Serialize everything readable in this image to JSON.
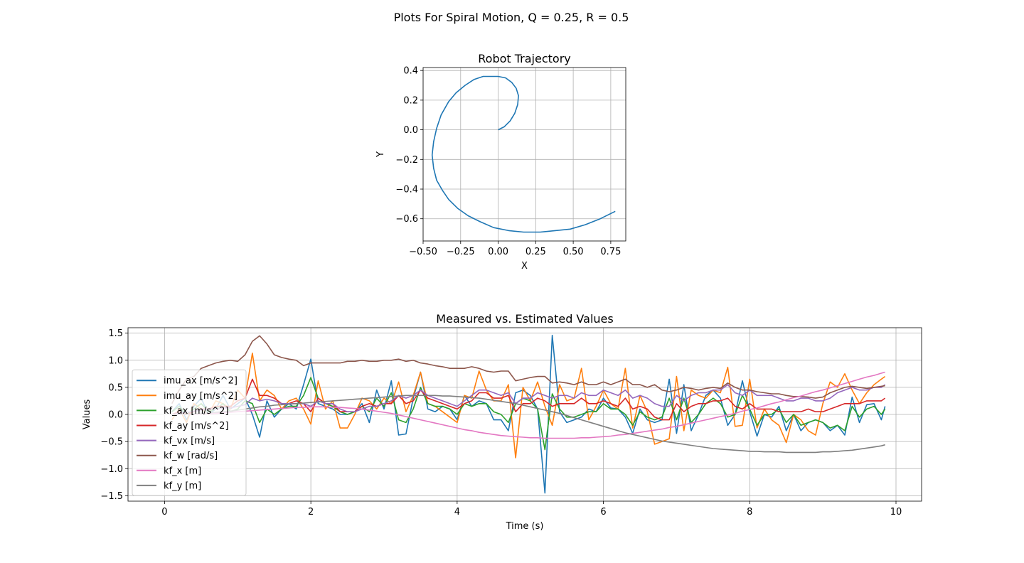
{
  "figure": {
    "suptitle": "Plots For Spiral Motion, Q = 0.25, R = 0.5"
  },
  "chart_data": [
    {
      "type": "line",
      "title": "Robot Trajectory",
      "xlabel": "X",
      "ylabel": "Y",
      "xlim": [
        -0.5,
        0.85
      ],
      "ylim": [
        -0.75,
        0.42
      ],
      "xticks": [
        -0.5,
        -0.25,
        0.0,
        0.25,
        0.5,
        0.75
      ],
      "xtick_labels": [
        "−0.50",
        "−0.25",
        "0.00",
        "0.25",
        "0.50",
        "0.75"
      ],
      "yticks": [
        -0.6,
        -0.4,
        -0.2,
        0.0,
        0.2,
        0.4
      ],
      "ytick_labels": [
        "−0.6",
        "−0.4",
        "−0.2",
        "0.0",
        "0.2",
        "0.4"
      ],
      "grid": true,
      "series": [
        {
          "color": "#1f77b4",
          "x": [
            0.0,
            0.04,
            0.08,
            0.11,
            0.13,
            0.135,
            0.12,
            0.09,
            0.05,
            0.0,
            -0.05,
            -0.1,
            -0.16,
            -0.22,
            -0.28,
            -0.33,
            -0.38,
            -0.41,
            -0.43,
            -0.44,
            -0.43,
            -0.41,
            -0.37,
            -0.33,
            -0.27,
            -0.2,
            -0.12,
            -0.03,
            0.07,
            0.17,
            0.28,
            0.38,
            0.48,
            0.58,
            0.68,
            0.78
          ],
          "y": [
            0.0,
            0.02,
            0.06,
            0.11,
            0.17,
            0.23,
            0.28,
            0.32,
            0.35,
            0.36,
            0.36,
            0.36,
            0.34,
            0.3,
            0.25,
            0.19,
            0.1,
            0.01,
            -0.08,
            -0.17,
            -0.26,
            -0.34,
            -0.41,
            -0.47,
            -0.53,
            -0.58,
            -0.62,
            -0.66,
            -0.68,
            -0.69,
            -0.69,
            -0.68,
            -0.67,
            -0.64,
            -0.6,
            -0.55
          ]
        }
      ]
    },
    {
      "type": "line",
      "title": "Measured vs. Estimated Values",
      "xlabel": "Time (s)",
      "ylabel": "Values",
      "xlim": [
        -0.5,
        10.35
      ],
      "ylim": [
        -1.6,
        1.6
      ],
      "xticks": [
        0,
        2,
        4,
        6,
        8,
        10
      ],
      "xtick_labels": [
        "0",
        "2",
        "4",
        "6",
        "8",
        "10"
      ],
      "yticks": [
        -1.5,
        -1.0,
        -0.5,
        0.0,
        0.5,
        1.0,
        1.5
      ],
      "ytick_labels": [
        "−1.5",
        "−1.0",
        "−0.5",
        "0.0",
        "0.5",
        "1.0",
        "1.5"
      ],
      "grid": true,
      "legend_position": "lower-left",
      "x": [
        0.1,
        0.2,
        0.3,
        0.4,
        0.5,
        0.6,
        0.7,
        0.8,
        0.9,
        1.0,
        1.1,
        1.2,
        1.3,
        1.4,
        1.5,
        1.6,
        1.7,
        1.8,
        1.9,
        2.0,
        2.1,
        2.2,
        2.3,
        2.4,
        2.5,
        2.6,
        2.7,
        2.8,
        2.9,
        3.0,
        3.1,
        3.2,
        3.3,
        3.4,
        3.5,
        3.6,
        3.7,
        3.8,
        3.9,
        4.0,
        4.1,
        4.2,
        4.3,
        4.4,
        4.5,
        4.6,
        4.7,
        4.8,
        4.9,
        5.0,
        5.1,
        5.2,
        5.3,
        5.4,
        5.5,
        5.6,
        5.7,
        5.8,
        5.9,
        6.0,
        6.1,
        6.2,
        6.3,
        6.4,
        6.5,
        6.6,
        6.7,
        6.8,
        6.9,
        7.0,
        7.1,
        7.2,
        7.3,
        7.4,
        7.5,
        7.6,
        7.7,
        7.8,
        7.9,
        8.0,
        8.1,
        8.2,
        8.3,
        8.4,
        8.5,
        8.6,
        8.7,
        8.8,
        8.9,
        9.0,
        9.1,
        9.2,
        9.3,
        9.4,
        9.5,
        9.6,
        9.7,
        9.8,
        9.85
      ],
      "series": [
        {
          "name": "imu_ax [m/s^2]",
          "color": "#1f77b4",
          "values": [
            0.05,
            0.2,
            -0.1,
            0.15,
            0.3,
            0.0,
            0.1,
            0.35,
            0.1,
            0.2,
            0.3,
            0.0,
            -0.42,
            0.25,
            -0.05,
            0.1,
            0.2,
            0.1,
            0.55,
            1.02,
            0.2,
            0.15,
            0.1,
            0.0,
            0.0,
            0.05,
            0.2,
            -0.15,
            0.45,
            0.1,
            0.62,
            -0.38,
            -0.36,
            0.3,
            0.78,
            0.1,
            0.05,
            0.15,
            0.1,
            -0.1,
            0.35,
            0.15,
            0.25,
            0.2,
            -0.1,
            -0.1,
            -0.3,
            0.4,
            0.45,
            0.35,
            0.1,
            -1.45,
            1.46,
            0.05,
            -0.15,
            -0.1,
            -0.05,
            0.1,
            0.05,
            0.3,
            0.12,
            0.1,
            -0.05,
            -0.35,
            0.1,
            -0.1,
            -0.15,
            -0.1,
            0.65,
            -0.35,
            0.55,
            -0.3,
            0.0,
            0.35,
            0.45,
            0.3,
            -0.2,
            0.0,
            0.62,
            0.05,
            -0.4,
            0.0,
            -0.05,
            0.15,
            -0.3,
            0.0,
            -0.3,
            -0.15,
            -0.1,
            -0.15,
            -0.3,
            -0.2,
            -0.38,
            0.32,
            -0.15,
            0.18,
            0.2,
            -0.1,
            0.15
          ]
        },
        {
          "name": "imu_ay [m/s^2]",
          "color": "#ff7f0e",
          "values": [
            -0.1,
            0.1,
            -0.15,
            0.2,
            0.1,
            0.0,
            0.25,
            0.2,
            0.1,
            0.45,
            0.3,
            1.13,
            0.25,
            0.45,
            0.35,
            0.1,
            0.25,
            0.3,
            0.1,
            -0.18,
            0.62,
            0.1,
            0.25,
            -0.25,
            -0.25,
            0.0,
            0.3,
            0.25,
            0.1,
            0.3,
            0.2,
            0.6,
            0.05,
            0.35,
            0.78,
            0.2,
            0.15,
            0.05,
            -0.05,
            -0.15,
            0.35,
            0.3,
            0.8,
            0.45,
            0.25,
            0.25,
            0.55,
            -0.8,
            0.5,
            0.25,
            0.6,
            0.15,
            -0.2,
            0.55,
            0.25,
            0.3,
            0.85,
            -0.1,
            0.15,
            0.45,
            0.2,
            0.1,
            0.85,
            -0.25,
            0.35,
            0.05,
            -0.55,
            -0.5,
            -0.45,
            0.7,
            -0.3,
            0.45,
            0.35,
            0.3,
            0.45,
            0.4,
            0.87,
            -0.22,
            -0.2,
            0.65,
            -0.25,
            0.1,
            -0.1,
            -0.2,
            -0.52,
            0.0,
            -0.1,
            -0.3,
            -0.38,
            0.2,
            0.6,
            0.5,
            0.75,
            0.45,
            0.2,
            0.4,
            0.55,
            0.65,
            0.7
          ]
        },
        {
          "name": "kf_ax [m/s^2]",
          "color": "#2ca02c",
          "values": [
            0.05,
            0.15,
            0.0,
            0.1,
            0.2,
            0.05,
            0.1,
            0.2,
            0.05,
            0.1,
            0.25,
            0.2,
            -0.15,
            0.1,
            0.0,
            0.1,
            0.15,
            0.15,
            0.35,
            0.68,
            0.3,
            0.2,
            0.15,
            0.05,
            0.0,
            0.05,
            0.15,
            0.05,
            0.3,
            0.15,
            0.4,
            -0.1,
            -0.15,
            0.1,
            0.5,
            0.2,
            0.15,
            0.15,
            0.1,
            0.0,
            0.2,
            0.15,
            0.2,
            0.2,
            0.05,
            0.0,
            -0.15,
            0.2,
            0.3,
            0.25,
            0.1,
            -0.65,
            0.38,
            0.1,
            -0.05,
            -0.05,
            0.0,
            0.05,
            0.05,
            0.2,
            0.1,
            0.1,
            0.0,
            -0.2,
            0.05,
            -0.05,
            -0.1,
            -0.05,
            0.3,
            -0.1,
            0.3,
            -0.15,
            0.0,
            0.2,
            0.3,
            0.2,
            -0.05,
            0.0,
            0.35,
            0.1,
            -0.2,
            0.0,
            0.0,
            0.1,
            -0.15,
            0.0,
            -0.2,
            -0.15,
            -0.1,
            -0.15,
            -0.25,
            -0.2,
            -0.3,
            0.15,
            -0.05,
            0.1,
            0.15,
            0.0,
            0.1
          ]
        },
        {
          "name": "kf_ay [m/s^2]",
          "color": "#d62728",
          "values": [
            0.0,
            0.05,
            0.0,
            0.05,
            0.1,
            0.1,
            0.15,
            0.15,
            0.15,
            0.25,
            0.3,
            0.65,
            0.35,
            0.35,
            0.3,
            0.2,
            0.2,
            0.25,
            0.2,
            0.05,
            0.3,
            0.2,
            0.2,
            0.05,
            0.05,
            0.05,
            0.15,
            0.2,
            0.15,
            0.2,
            0.2,
            0.35,
            0.2,
            0.25,
            0.45,
            0.3,
            0.25,
            0.2,
            0.15,
            0.1,
            0.2,
            0.25,
            0.4,
            0.4,
            0.3,
            0.3,
            0.35,
            0.05,
            0.2,
            0.2,
            0.3,
            0.25,
            0.15,
            0.2,
            0.2,
            0.2,
            0.3,
            0.2,
            0.2,
            0.25,
            0.2,
            0.15,
            0.3,
            0.1,
            0.15,
            0.1,
            -0.05,
            -0.1,
            -0.1,
            0.2,
            0.05,
            0.15,
            0.2,
            0.2,
            0.25,
            0.25,
            0.3,
            0.15,
            0.1,
            0.2,
            0.1,
            0.1,
            0.1,
            0.05,
            0.05,
            0.05,
            0.05,
            0.1,
            0.05,
            0.05,
            0.1,
            0.15,
            0.2,
            0.2,
            0.2,
            0.25,
            0.25,
            0.25,
            0.3
          ]
        },
        {
          "name": "kf_vx [m/s]",
          "color": "#9467bd",
          "values": [
            0.0,
            0.02,
            0.04,
            0.06,
            0.08,
            0.1,
            0.1,
            0.12,
            0.12,
            0.15,
            0.18,
            0.3,
            0.25,
            0.28,
            0.25,
            0.2,
            0.2,
            0.2,
            0.2,
            0.15,
            0.25,
            0.2,
            0.2,
            0.1,
            0.05,
            0.05,
            0.1,
            0.15,
            0.15,
            0.2,
            0.25,
            0.35,
            0.3,
            0.35,
            0.45,
            0.35,
            0.3,
            0.25,
            0.2,
            0.15,
            0.25,
            0.35,
            0.45,
            0.45,
            0.4,
            0.35,
            0.4,
            0.2,
            0.3,
            0.3,
            0.4,
            0.35,
            0.3,
            0.35,
            0.35,
            0.3,
            0.4,
            0.35,
            0.35,
            0.45,
            0.4,
            0.35,
            0.45,
            0.3,
            0.35,
            0.3,
            0.2,
            0.15,
            0.15,
            0.35,
            0.25,
            0.35,
            0.4,
            0.4,
            0.45,
            0.45,
            0.55,
            0.4,
            0.35,
            0.45,
            0.35,
            0.35,
            0.35,
            0.3,
            0.25,
            0.25,
            0.3,
            0.3,
            0.25,
            0.25,
            0.3,
            0.4,
            0.45,
            0.5,
            0.45,
            0.45,
            0.5,
            0.5,
            0.55
          ]
        },
        {
          "name": "kf_w [rad/s]",
          "color": "#8c564b",
          "values": [
            0.2,
            0.45,
            0.65,
            0.7,
            0.85,
            0.9,
            0.95,
            0.98,
            1.0,
            0.98,
            1.1,
            1.35,
            1.45,
            1.3,
            1.1,
            1.05,
            1.02,
            1.0,
            0.9,
            0.95,
            0.95,
            0.95,
            0.95,
            0.95,
            0.98,
            0.98,
            1.0,
            0.98,
            0.98,
            1.0,
            1.0,
            1.02,
            0.98,
            1.0,
            0.95,
            0.93,
            0.9,
            0.88,
            0.85,
            0.85,
            0.85,
            0.88,
            0.85,
            0.8,
            0.78,
            0.8,
            0.8,
            0.62,
            0.65,
            0.68,
            0.7,
            0.7,
            0.58,
            0.6,
            0.58,
            0.55,
            0.6,
            0.55,
            0.55,
            0.6,
            0.55,
            0.6,
            0.65,
            0.55,
            0.55,
            0.5,
            0.55,
            0.45,
            0.42,
            0.45,
            0.5,
            0.48,
            0.45,
            0.48,
            0.5,
            0.48,
            0.58,
            0.5,
            0.45,
            0.45,
            0.42,
            0.4,
            0.38,
            0.38,
            0.35,
            0.33,
            0.33,
            0.32,
            0.3,
            0.32,
            0.4,
            0.45,
            0.5,
            0.52,
            0.5,
            0.48,
            0.5,
            0.52,
            0.53
          ]
        },
        {
          "name": "kf_x [m]",
          "color": "#e377c2",
          "values": [
            0.0,
            0.0,
            0.0,
            0.0,
            0.01,
            0.01,
            0.02,
            0.03,
            0.04,
            0.05,
            0.06,
            0.07,
            0.08,
            0.09,
            0.1,
            0.11,
            0.12,
            0.13,
            0.13,
            0.14,
            0.14,
            0.14,
            0.13,
            0.13,
            0.12,
            0.11,
            0.1,
            0.08,
            0.06,
            0.04,
            0.02,
            -0.01,
            -0.04,
            -0.07,
            -0.1,
            -0.13,
            -0.16,
            -0.19,
            -0.22,
            -0.25,
            -0.28,
            -0.3,
            -0.33,
            -0.35,
            -0.37,
            -0.39,
            -0.4,
            -0.41,
            -0.42,
            -0.43,
            -0.43,
            -0.44,
            -0.44,
            -0.44,
            -0.44,
            -0.44,
            -0.43,
            -0.43,
            -0.42,
            -0.41,
            -0.4,
            -0.38,
            -0.37,
            -0.35,
            -0.33,
            -0.31,
            -0.29,
            -0.27,
            -0.24,
            -0.22,
            -0.19,
            -0.16,
            -0.13,
            -0.1,
            -0.07,
            -0.04,
            -0.01,
            0.02,
            0.06,
            0.09,
            0.12,
            0.16,
            0.2,
            0.23,
            0.27,
            0.31,
            0.34,
            0.38,
            0.42,
            0.45,
            0.49,
            0.53,
            0.57,
            0.61,
            0.65,
            0.69,
            0.72,
            0.76,
            0.78
          ]
        },
        {
          "name": "kf_y [m]",
          "color": "#7f7f7f",
          "values": [
            0.0,
            0.0,
            0.0,
            0.01,
            0.02,
            0.03,
            0.04,
            0.05,
            0.06,
            0.08,
            0.1,
            0.12,
            0.14,
            0.15,
            0.17,
            0.18,
            0.19,
            0.2,
            0.21,
            0.22,
            0.23,
            0.24,
            0.25,
            0.26,
            0.27,
            0.28,
            0.29,
            0.3,
            0.31,
            0.32,
            0.33,
            0.34,
            0.35,
            0.35,
            0.35,
            0.35,
            0.35,
            0.34,
            0.34,
            0.33,
            0.32,
            0.31,
            0.3,
            0.28,
            0.26,
            0.24,
            0.22,
            0.2,
            0.17,
            0.14,
            0.11,
            0.08,
            0.05,
            0.02,
            -0.02,
            -0.06,
            -0.1,
            -0.14,
            -0.18,
            -0.22,
            -0.26,
            -0.3,
            -0.34,
            -0.37,
            -0.4,
            -0.43,
            -0.46,
            -0.49,
            -0.51,
            -0.53,
            -0.55,
            -0.57,
            -0.59,
            -0.61,
            -0.63,
            -0.64,
            -0.65,
            -0.66,
            -0.67,
            -0.68,
            -0.68,
            -0.69,
            -0.69,
            -0.69,
            -0.7,
            -0.7,
            -0.7,
            -0.7,
            -0.7,
            -0.69,
            -0.69,
            -0.68,
            -0.67,
            -0.66,
            -0.64,
            -0.62,
            -0.6,
            -0.58,
            -0.56
          ]
        }
      ]
    }
  ]
}
